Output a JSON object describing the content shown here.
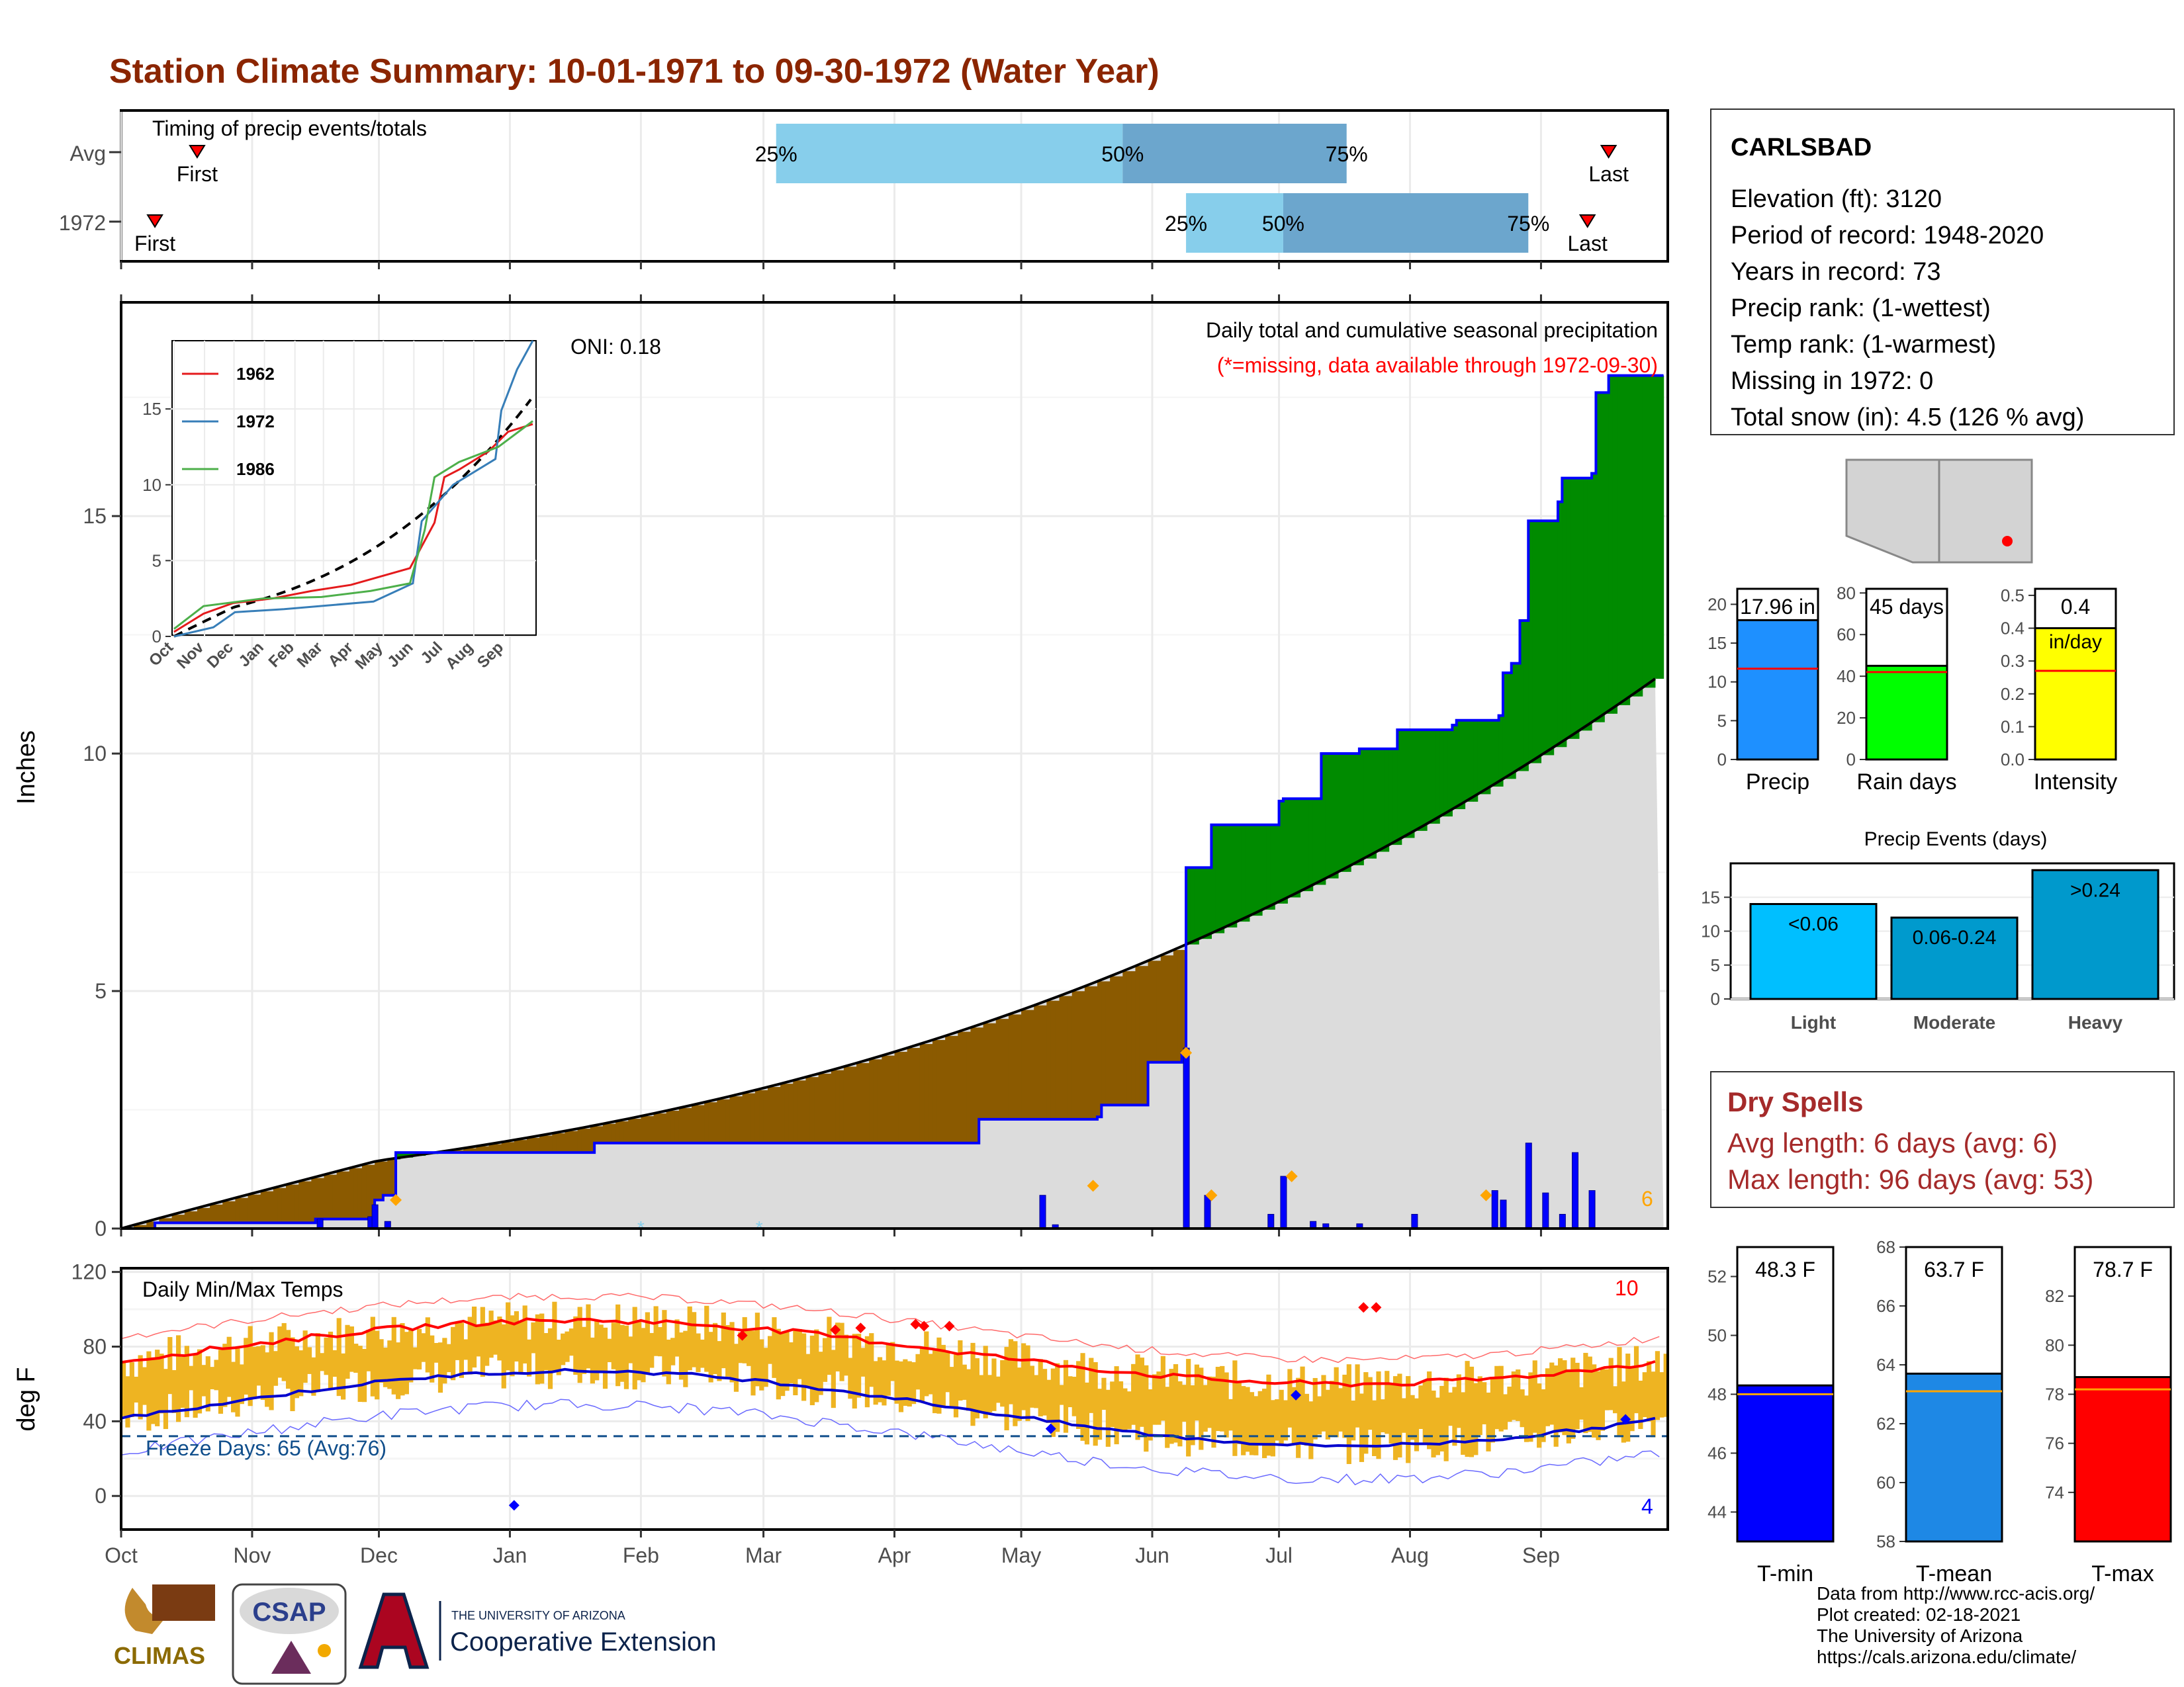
{
  "title": "Station Climate Summary: 10-01-1971 to 09-30-1972 (Water Year)",
  "colors": {
    "title": "#8b2500",
    "q_light": "#87ceeb",
    "q_mid": "#6ca6cd",
    "above_avg": "#008b00",
    "below_avg": "#8b5a00",
    "clim_fill": "#dcdcdc",
    "precip_line": "#0000ff",
    "temp_bar": "#eeb422",
    "tmax_line": "#ff0000",
    "tmin_line": "#0000cd",
    "dry_spell": "#a52a2a",
    "precip_box": "#1e90ff",
    "raindays_box": "#00ff00",
    "intensity_box": "#ffff00",
    "events_light": "#00bfff",
    "events_mod": "#009acd",
    "events_heavy": "#0099cc",
    "tmin_box": "#0000ff",
    "tmean_box": "#1e88e5",
    "tmax_box": "#ff0000"
  },
  "months": [
    "Oct",
    "Nov",
    "Dec",
    "Jan",
    "Feb",
    "Mar",
    "Apr",
    "May",
    "Jun",
    "Jul",
    "Aug",
    "Sep"
  ],
  "timing": {
    "label": "Timing of precip events/totals",
    "rows": [
      "Avg",
      "1972"
    ],
    "avg": {
      "q25": "25%",
      "q50": "50%",
      "q75": "75%",
      "first": "First",
      "last": "Last",
      "q25_day": 155,
      "q50_day": 237,
      "q75_day": 290,
      "first_day": 18,
      "last_day": 352
    },
    "year": {
      "q25": "25%",
      "q50": "50%",
      "q75": "75%",
      "first": "First",
      "last": "Last",
      "q25_day": 252,
      "q50_day": 275,
      "q75_day": 333,
      "first_day": 8,
      "last_day": 347
    }
  },
  "precip": {
    "ylabel": "Inches",
    "oni": "ONI: 0.18",
    "note1": "Daily total and cumulative seasonal precipitation",
    "note2": "(*=missing, data available through 1972-09-30)",
    "count": "6",
    "ylim": [
      0,
      19.5
    ],
    "yticks": [
      "0",
      "5",
      "10",
      "15"
    ],
    "cumulative": [
      [
        0,
        0
      ],
      [
        8,
        0.12
      ],
      [
        26,
        0.12
      ],
      [
        46,
        0.2
      ],
      [
        59,
        0.2
      ],
      [
        60,
        0.6
      ],
      [
        61,
        0.6
      ],
      [
        62,
        0.7
      ],
      [
        64,
        0.7
      ],
      [
        65,
        1.6
      ],
      [
        94,
        1.6
      ],
      [
        111,
        1.6
      ],
      [
        112,
        1.8
      ],
      [
        122,
        1.8
      ],
      [
        202,
        1.8
      ],
      [
        203,
        2.3
      ],
      [
        231,
        2.35
      ],
      [
        232,
        2.6
      ],
      [
        242,
        2.6
      ],
      [
        243,
        3.5
      ],
      [
        262,
        3.6
      ],
      [
        263,
        3.7
      ],
      [
        251,
        3.7
      ],
      [
        252,
        7.6
      ],
      [
        258,
        8.5
      ],
      [
        270,
        8.5
      ],
      [
        273,
        8.5
      ],
      [
        274,
        9.0
      ],
      [
        275,
        9.05
      ],
      [
        276,
        9.05
      ],
      [
        277,
        8.5
      ],
      [
        276,
        8.5
      ],
      [
        277,
        9.0
      ],
      [
        283,
        9.0
      ],
      [
        284,
        10.0
      ],
      [
        292,
        10.0
      ],
      [
        293,
        10.1
      ],
      [
        301,
        10.1
      ],
      [
        302,
        10.5
      ],
      [
        315,
        10.6
      ],
      [
        316,
        10.7
      ],
      [
        326,
        10.8
      ],
      [
        327,
        11.7
      ],
      [
        329,
        11.9
      ],
      [
        331,
        12.8
      ],
      [
        333,
        14.9
      ],
      [
        340,
        15.3
      ],
      [
        341,
        15.8
      ],
      [
        348,
        15.9
      ],
      [
        349,
        17.6
      ],
      [
        352,
        17.96
      ],
      [
        365,
        17.96
      ]
    ],
    "climatology_end": 11.7,
    "daily_bars": [
      [
        47,
        0.2
      ],
      [
        59,
        0.25
      ],
      [
        60,
        0.5
      ],
      [
        63,
        0.15
      ],
      [
        218,
        0.7
      ],
      [
        221,
        0.08
      ],
      [
        252,
        3.8
      ],
      [
        257,
        0.7
      ],
      [
        272,
        0.3
      ],
      [
        275,
        1.1
      ],
      [
        282,
        0.15
      ],
      [
        285,
        0.1
      ],
      [
        293,
        0.1
      ],
      [
        306,
        0.3
      ],
      [
        325,
        0.8
      ],
      [
        327,
        0.6
      ],
      [
        333,
        1.8
      ],
      [
        337,
        0.75
      ],
      [
        341,
        0.3
      ],
      [
        344,
        1.6
      ],
      [
        348,
        0.8
      ]
    ],
    "bar_markers": [
      [
        65,
        0.6
      ],
      [
        230,
        0.9
      ],
      [
        252,
        3.7
      ],
      [
        258,
        0.7
      ],
      [
        277,
        1.1
      ],
      [
        323,
        0.7
      ]
    ]
  },
  "inset": {
    "legend": [
      "1962",
      "1972",
      "1986"
    ],
    "series_colors": [
      "#e41a1c",
      "#377eb8",
      "#4daf4a"
    ],
    "yticks": [
      "0",
      "5",
      "10",
      "15"
    ],
    "xticks": [
      "Oct",
      "Nov",
      "Dec",
      "Jan",
      "Feb",
      "Mar",
      "Apr",
      "May",
      "Jun",
      "Jul",
      "Aug",
      "Sep"
    ]
  },
  "temps": {
    "ylabel": "deg F",
    "label": "Daily Min/Max Temps",
    "freeze": "Freeze Days: 65 (Avg:76)",
    "tmax_count": "10",
    "tmin_count": "4",
    "ylim": [
      -18,
      122
    ],
    "yticks": [
      "0",
      "40",
      "80",
      "120"
    ],
    "freeze_line": 32
  },
  "station": {
    "name": "CARLSBAD",
    "elev": "Elevation (ft): 3120",
    "por": "Period of record: 1948-2020",
    "years": "Years in record: 73",
    "prank": "Precip rank:  (1-wettest)",
    "trank": "Temp rank:  (1-warmest)",
    "missing": "Missing in 1972: 0",
    "snow": "Total snow (in): 4.5 (126 % avg)"
  },
  "summary_bars": [
    {
      "label": "Precip",
      "value_text": "17.96 in",
      "value": 17.96,
      "avg": 11.7,
      "max": 22,
      "ticks": [
        "0",
        "5",
        "10",
        "15",
        "20"
      ]
    },
    {
      "label": "Rain days",
      "value_text": "45 days",
      "value": 45,
      "avg": 42,
      "max": 82,
      "ticks": [
        "0",
        "20",
        "40",
        "60",
        "80"
      ]
    },
    {
      "label": "Intensity",
      "value_text": "0.4",
      "value2": "in/day",
      "value": 0.4,
      "avg": 0.27,
      "max": 0.52,
      "ticks": [
        "0.0",
        "0.1",
        "0.2",
        "0.3",
        "0.4",
        "0.5"
      ]
    }
  ],
  "events": {
    "title": "Precip Events (days)",
    "bars": [
      {
        "label": "Light",
        "range": "<0.06",
        "value": 14
      },
      {
        "label": "Moderate",
        "range": "0.06-0.24",
        "value": 12
      },
      {
        "label": "Heavy",
        "range": ">0.24",
        "value": 19
      }
    ],
    "ticks": [
      "0",
      "5",
      "10",
      "15"
    ],
    "max": 20
  },
  "dry_spells": {
    "title": "Dry Spells",
    "avg": "Avg length: 6 days (avg: 6)",
    "max": "Max length: 96 days (avg: 53)"
  },
  "temp_bars": [
    {
      "label": "T-min",
      "value_text": "48.3 F",
      "value": 48.3,
      "avg": 48.0,
      "min": 43,
      "max": 53,
      "ticks": [
        "44",
        "46",
        "48",
        "50",
        "52"
      ]
    },
    {
      "label": "T-mean",
      "value_text": "63.7 F",
      "value": 63.7,
      "avg": 63.1,
      "min": 58,
      "max": 68,
      "ticks": [
        "58",
        "60",
        "62",
        "64",
        "66",
        "68"
      ]
    },
    {
      "label": "T-max",
      "value_text": "78.7 F",
      "value": 78.7,
      "avg": 78.2,
      "min": 72,
      "max": 84,
      "ticks": [
        "74",
        "76",
        "78",
        "80",
        "82"
      ]
    }
  ],
  "footer": {
    "line1": "Data from http://www.rcc-acis.org/",
    "line2": "Plot created: 02-18-2021",
    "line3": "The University of Arizona",
    "line4": "https://cals.arizona.edu/climate/",
    "climas": "CLIMAS",
    "csap": "CSAP",
    "ua_small": "THE UNIVERSITY OF ARIZONA",
    "ua_big": "Cooperative Extension"
  }
}
